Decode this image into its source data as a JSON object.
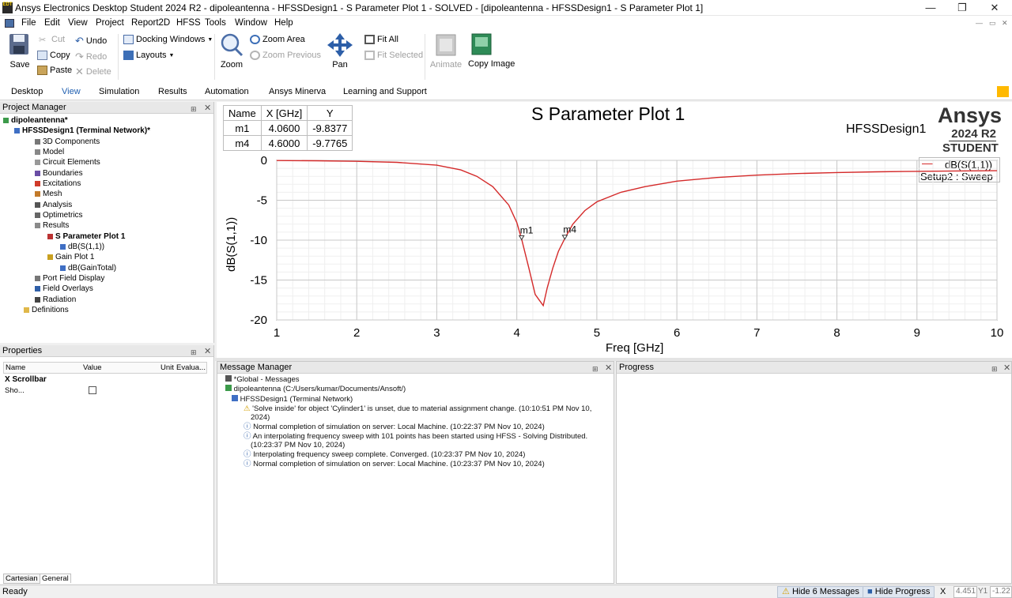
{
  "window": {
    "title": "Ansys Electronics Desktop Student 2024 R2 - dipoleantenna - HFSSDesign1 - S Parameter Plot 1 - SOLVED - [dipoleantenna - HFSSDesign1 - S Parameter Plot 1]",
    "icon_text": "EDT"
  },
  "menu": [
    "File",
    "Edit",
    "View",
    "Project",
    "Report2D",
    "HFSS",
    "Tools",
    "Window",
    "Help"
  ],
  "ribbon": {
    "save": "Save",
    "cut": "Cut",
    "copy": "Copy",
    "paste": "Paste",
    "undo": "Undo",
    "redo": "Redo",
    "delete": "Delete",
    "docking": "Docking Windows",
    "layouts": "Layouts",
    "zoom": "Zoom",
    "zoom_area": "Zoom Area",
    "zoom_prev": "Zoom Previous",
    "pan": "Pan",
    "fit_all": "Fit All",
    "fit_selected": "Fit Selected",
    "animate": "Animate",
    "copy_image": "Copy Image"
  },
  "tabs": [
    "Desktop",
    "View",
    "Simulation",
    "Results",
    "Automation",
    "Ansys Minerva",
    "Learning and Support"
  ],
  "active_tab": "View",
  "project_manager": {
    "title": "Project Manager",
    "tree": [
      "dipoleantenna*",
      "HFSSDesign1 (Terminal Network)*",
      "3D Components",
      "Model",
      "Circuit Elements",
      "Boundaries",
      "Excitations",
      "Mesh",
      "Analysis",
      "Optimetrics",
      "Results",
      "S Parameter Plot 1",
      "dB(S(1,1))",
      "Gain Plot 1",
      "dB(GainTotal)",
      "Port Field Display",
      "Field Overlays",
      "Radiation",
      "Definitions"
    ]
  },
  "properties": {
    "title": "Properties",
    "cols": [
      "Name",
      "Value",
      "Unit",
      "Evalua..."
    ],
    "group": "X Scrollbar",
    "row_name": "Sho...",
    "tabs": [
      "Cartesian",
      "General"
    ]
  },
  "plot": {
    "title": "S Parameter Plot 1",
    "design": "HFSSDesign1",
    "brand": "Ansys",
    "version": "2024 R2",
    "edition": "STUDENT",
    "legend_trace": "dB(S(1,1))",
    "legend_setup": "Setup2 : Sweep",
    "marker_table": {
      "headers": [
        "Name",
        "X [GHz]",
        "Y"
      ],
      "rows": [
        [
          "m1",
          "4.0600",
          "-9.8377"
        ],
        [
          "m4",
          "4.6000",
          "-9.7765"
        ]
      ]
    }
  },
  "chart_data": {
    "type": "line",
    "xlabel": "Freq [GHz]",
    "ylabel": "dB(S(1,1))",
    "xlim": [
      1,
      10
    ],
    "ylim": [
      -20,
      0
    ],
    "x_ticks": [
      "1",
      "2",
      "3",
      "4",
      "5",
      "6",
      "7",
      "8",
      "9",
      "10"
    ],
    "y_ticks": [
      "0",
      "-5",
      "-10",
      "-15",
      "-20"
    ],
    "grid": true,
    "legend": "top-right",
    "series": [
      {
        "name": "dB(S(1,1))",
        "color": "#d42a2a",
        "x": [
          1,
          1.5,
          2,
          2.5,
          3,
          3.3,
          3.5,
          3.7,
          3.9,
          4.0,
          4.06,
          4.15,
          4.23,
          4.28,
          4.33,
          4.38,
          4.45,
          4.52,
          4.6,
          4.7,
          4.85,
          5.0,
          5.3,
          5.6,
          6,
          6.5,
          7,
          7.5,
          8,
          8.5,
          9,
          9.5,
          10
        ],
        "y": [
          -0.02,
          -0.05,
          -0.12,
          -0.25,
          -0.6,
          -1.2,
          -2.0,
          -3.3,
          -5.6,
          -7.8,
          -9.84,
          -13.5,
          -16.8,
          -17.5,
          -18.2,
          -16.0,
          -13.5,
          -11.4,
          -9.78,
          -8.0,
          -6.3,
          -5.2,
          -4.0,
          -3.3,
          -2.6,
          -2.15,
          -1.85,
          -1.65,
          -1.52,
          -1.44,
          -1.38,
          -1.33,
          -1.3
        ]
      }
    ],
    "markers": [
      {
        "name": "m1",
        "x": 4.06,
        "y": -9.8377
      },
      {
        "name": "m4",
        "x": 4.6,
        "y": -9.7765
      }
    ]
  },
  "message_manager": {
    "title": "Message Manager",
    "global": "*Global - Messages",
    "project": "dipoleantenna (C:/Users/kumar/Documents/Ansoft/)",
    "design": "HFSSDesign1 (Terminal Network)",
    "messages": [
      "'Solve inside' for object 'Cylinder1' is unset, due to material assignment change. (10:10:51 PM  Nov 10,",
      "2024)",
      "Normal completion of simulation on server: Local Machine. (10:22:37 PM  Nov 10, 2024)",
      "An interpolating frequency sweep with 101 points has been started using HFSS - Solving Distributed.",
      "(10:23:37 PM  Nov 10, 2024)",
      "Interpolating frequency sweep complete. Converged. (10:23:37 PM  Nov 10, 2024)",
      "Normal completion of simulation on server: Local Machine. (10:23:37 PM  Nov 10, 2024)"
    ]
  },
  "progress": {
    "title": "Progress"
  },
  "status": {
    "text": "Ready",
    "hide_messages": "Hide 6 Messages",
    "hide_progress": "Hide Progress",
    "close": "X",
    "x_val": "4.451",
    "y_label": "Y1",
    "y_val": "-1.22"
  }
}
